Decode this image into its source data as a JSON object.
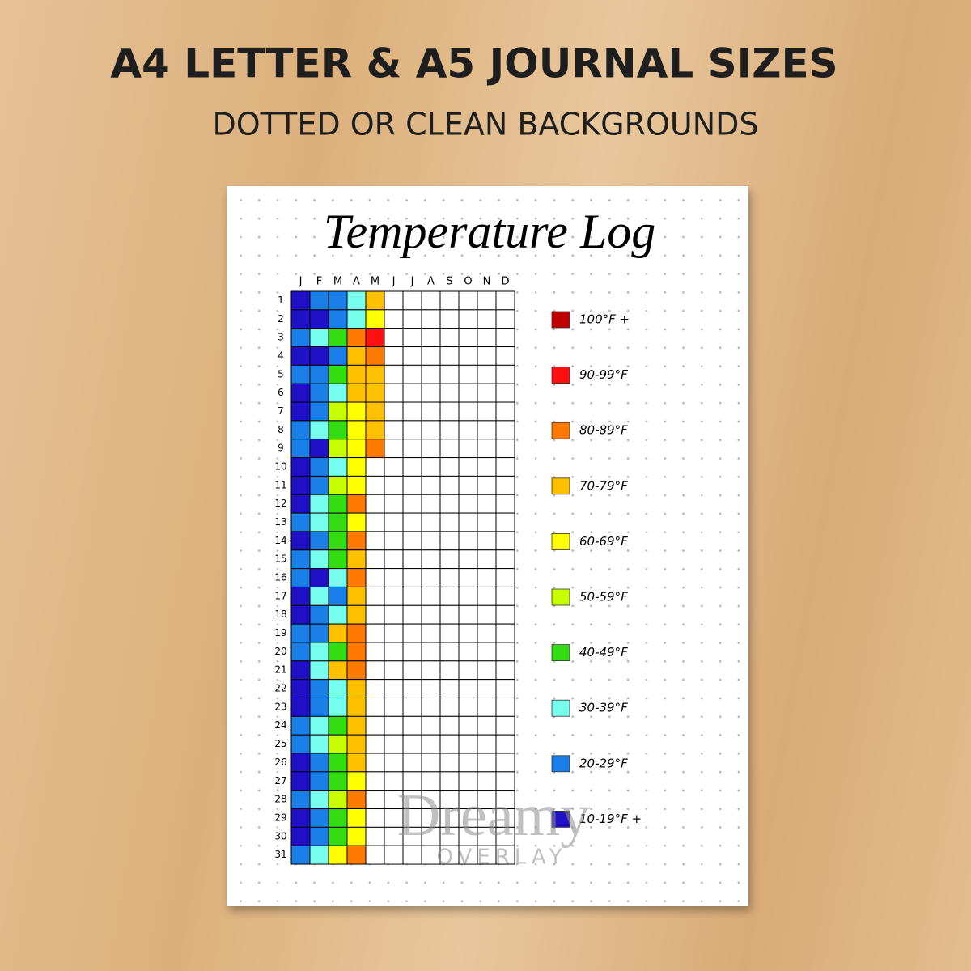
{
  "header": {
    "title": "A4 LETTER & A5 JOURNAL SIZES",
    "subtitle": "DOTTED OR CLEAN BACKGROUNDS"
  },
  "sheet": {
    "title": "Temperature Log",
    "months": [
      "J",
      "F",
      "M",
      "A",
      "M",
      "J",
      "J",
      "A",
      "S",
      "O",
      "N",
      "D"
    ],
    "days": [
      1,
      2,
      3,
      4,
      5,
      6,
      7,
      8,
      9,
      10,
      11,
      12,
      13,
      14,
      15,
      16,
      17,
      18,
      19,
      20,
      21,
      22,
      23,
      24,
      25,
      26,
      27,
      28,
      29,
      30,
      31
    ],
    "cells": [
      [
        "#2010c8",
        "#1a7fe8",
        "#1a7fe8",
        "#77ffee",
        "#ffc000"
      ],
      [
        "#2010c8",
        "#2010c8",
        "#1a7fe8",
        "#77ffee",
        "#ffff00"
      ],
      [
        "#1a7fe8",
        "#77ffee",
        "#33dd11",
        "#ff7a00",
        "#ff1010"
      ],
      [
        "#2010c8",
        "#2010c8",
        "#1a7fe8",
        "#ffc000",
        "#ff7a00"
      ],
      [
        "#1a7fe8",
        "#1a7fe8",
        "#33dd11",
        "#ffc000",
        "#ffc000"
      ],
      [
        "#2010c8",
        "#1a7fe8",
        "#77ffee",
        "#ffc000",
        "#ffc000"
      ],
      [
        "#2010c8",
        "#1a7fe8",
        "#c8ff00",
        "#ffff00",
        "#ffc000"
      ],
      [
        "#1a7fe8",
        "#77ffee",
        "#33dd11",
        "#ffff00",
        "#ffc000"
      ],
      [
        "#1a7fe8",
        "#2010c8",
        "#c8ff00",
        "#ffff00",
        "#ff7a00"
      ],
      [
        "#2010c8",
        "#1a7fe8",
        "#77ffee",
        "#ffff00"
      ],
      [
        "#2010c8",
        "#1a7fe8",
        "#c8ff00",
        "#ffff00"
      ],
      [
        "#2010c8",
        "#77ffee",
        "#33dd11",
        "#ff7a00"
      ],
      [
        "#1a7fe8",
        "#77ffee",
        "#33dd11",
        "#ffff00"
      ],
      [
        "#2010c8",
        "#1a7fe8",
        "#33dd11",
        "#ff7a00"
      ],
      [
        "#1a7fe8",
        "#77ffee",
        "#33dd11",
        "#ffc000"
      ],
      [
        "#1a7fe8",
        "#2010c8",
        "#77ffee",
        "#ff7a00"
      ],
      [
        "#2010c8",
        "#77ffee",
        "#1a7fe8",
        "#ffc000"
      ],
      [
        "#2010c8",
        "#1a7fe8",
        "#77ffee",
        "#ffc000"
      ],
      [
        "#1a7fe8",
        "#1a7fe8",
        "#ffc000",
        "#ff7a00"
      ],
      [
        "#1a7fe8",
        "#77ffee",
        "#33dd11",
        "#ff7a00"
      ],
      [
        "#2010c8",
        "#77ffee",
        "#ffc000",
        "#ff7a00"
      ],
      [
        "#2010c8",
        "#1a7fe8",
        "#77ffee",
        "#ffc000"
      ],
      [
        "#2010c8",
        "#1a7fe8",
        "#77ffee",
        "#ffc000"
      ],
      [
        "#1a7fe8",
        "#77ffee",
        "#33dd11",
        "#ffc000"
      ],
      [
        "#1a7fe8",
        "#77ffee",
        "#c8ff00",
        "#ffc000"
      ],
      [
        "#2010c8",
        "#1a7fe8",
        "#33dd11",
        "#ffc000"
      ],
      [
        "#2010c8",
        "#1a7fe8",
        "#33dd11",
        "#ffff00"
      ],
      [
        "#1a7fe8",
        "#77ffee",
        "#c8ff00",
        "#ff7a00"
      ],
      [
        "#2010c8",
        "#1a7fe8",
        "#33dd11",
        "#ffff00"
      ],
      [
        "#2010c8",
        "#1a7fe8",
        "#33dd11",
        "#ffff00"
      ],
      [
        "#1a7fe8",
        "#77ffee",
        "#ffff00",
        "#ff7a00"
      ]
    ],
    "legend": [
      {
        "label": "100°F +",
        "color": "#c00000"
      },
      {
        "label": "90-99°F",
        "color": "#ff1010"
      },
      {
        "label": "80-89°F",
        "color": "#ff7a00"
      },
      {
        "label": "70-79°F",
        "color": "#ffc000"
      },
      {
        "label": "60-69°F",
        "color": "#ffff00"
      },
      {
        "label": "50-59°F",
        "color": "#c8ff00"
      },
      {
        "label": "40-49°F",
        "color": "#33dd11"
      },
      {
        "label": "30-39°F",
        "color": "#77ffee"
      },
      {
        "label": "20-29°F",
        "color": "#1a7fe8"
      },
      {
        "label": "10-19°F +",
        "color": "#2010c8"
      }
    ]
  },
  "watermark": {
    "title": "Dreamy",
    "subtitle": "OVERLAY"
  }
}
